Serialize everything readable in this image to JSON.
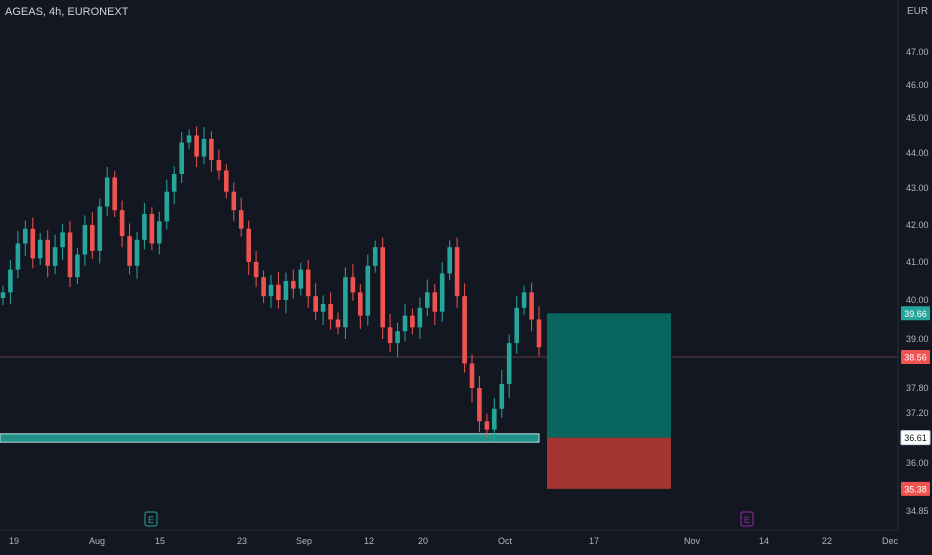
{
  "header": {
    "title": "AGEAS, 4h, EURONEXT",
    "currency": "EUR"
  },
  "colors": {
    "background": "#131722",
    "up": "#26a69a",
    "down": "#ef5350",
    "profit_zone": "#08665f",
    "loss_zone": "#a3342f",
    "axis_text": "#b2b5be"
  },
  "chart_data": {
    "type": "candlestick",
    "title": "",
    "timeframe": "4h",
    "x_ticks": [
      "19",
      "Aug",
      "15",
      "23",
      "Sep",
      "12",
      "20",
      "Oct",
      "17",
      "Nov",
      "14",
      "22",
      "Dec"
    ],
    "y_ticks": [
      "47.00",
      "46.00",
      "45.00",
      "44.00",
      "43.00",
      "42.00",
      "41.00",
      "40.00",
      "39.00",
      "37.80",
      "37.20",
      "36.00",
      "34.85"
    ],
    "ylim": [
      34.85,
      48.0
    ],
    "price_labels": {
      "target": "39.66",
      "current": "38.56",
      "entry": "36.61",
      "stop": "35.38"
    },
    "support_zone": {
      "low": 36.5,
      "high": 36.7,
      "label": ""
    },
    "position": {
      "entry": 36.61,
      "target": 39.66,
      "stop": 35.38
    },
    "events": [
      {
        "symbol": "E",
        "type": "earnings",
        "x": "Aug 9"
      },
      {
        "symbol": "E",
        "type": "earnings",
        "x": "Nov 8"
      }
    ],
    "key_levels": [
      38.56
    ],
    "closes_approx": [
      40.2,
      40.8,
      41.5,
      41.9,
      41.1,
      41.6,
      40.9,
      41.4,
      41.8,
      40.6,
      41.2,
      42.0,
      41.3,
      42.5,
      43.3,
      42.4,
      41.7,
      40.9,
      41.6,
      42.3,
      41.5,
      42.1,
      42.9,
      43.4,
      44.3,
      44.5,
      43.9,
      44.4,
      43.8,
      43.5,
      42.9,
      42.4,
      41.9,
      41.0,
      40.6,
      40.1,
      40.4,
      40.0,
      40.5,
      40.3,
      40.8,
      40.1,
      39.7,
      39.9,
      39.5,
      39.3,
      40.6,
      40.2,
      39.6,
      40.9,
      41.4,
      39.3,
      38.9,
      39.2,
      39.6,
      39.3,
      39.8,
      40.2,
      39.7,
      40.7,
      41.4,
      40.1,
      38.4,
      37.8,
      37.0,
      36.8,
      37.3,
      37.9,
      38.9,
      39.8,
      40.2,
      39.5,
      38.8
    ]
  }
}
